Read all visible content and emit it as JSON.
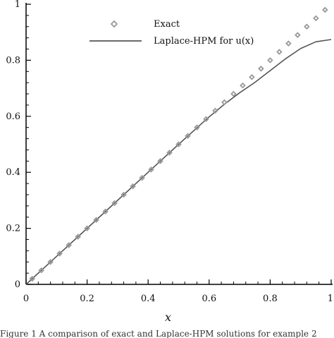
{
  "chart_data": {
    "type": "line",
    "title": "",
    "xlabel": "x",
    "ylabel": "",
    "xlim": [
      0,
      1
    ],
    "ylim": [
      0,
      1
    ],
    "xticks": [
      "0",
      "0.2",
      "0.4",
      "0.6",
      "0.8",
      "1"
    ],
    "yticks": [
      "0",
      "0.2",
      "0.4",
      "0.6",
      "0.8",
      "1"
    ],
    "grid": false,
    "legend_position": "top-right",
    "legend": [
      "Exact",
      "Laplace-HPM for u(x)"
    ],
    "series": [
      {
        "name": "Exact",
        "style": "markers",
        "marker": "diamond",
        "color": "#999999",
        "x": [
          0.02,
          0.05,
          0.08,
          0.11,
          0.14,
          0.17,
          0.2,
          0.23,
          0.26,
          0.29,
          0.32,
          0.35,
          0.38,
          0.41,
          0.44,
          0.47,
          0.5,
          0.53,
          0.56,
          0.59,
          0.62,
          0.65,
          0.68,
          0.71,
          0.74,
          0.77,
          0.8,
          0.83,
          0.86,
          0.89,
          0.92,
          0.95,
          0.98
        ],
        "values": [
          0.02,
          0.05,
          0.08,
          0.11,
          0.14,
          0.17,
          0.2,
          0.23,
          0.26,
          0.29,
          0.32,
          0.35,
          0.38,
          0.41,
          0.44,
          0.47,
          0.5,
          0.53,
          0.56,
          0.59,
          0.62,
          0.65,
          0.68,
          0.71,
          0.74,
          0.77,
          0.8,
          0.83,
          0.86,
          0.89,
          0.92,
          0.95,
          0.98
        ]
      },
      {
        "name": "Laplace-HPM for u(x)",
        "style": "line",
        "color": "#555555",
        "x": [
          0,
          0.1,
          0.2,
          0.3,
          0.4,
          0.5,
          0.6,
          0.65,
          0.7,
          0.75,
          0.8,
          0.85,
          0.9,
          0.95,
          1.0
        ],
        "values": [
          0,
          0.1,
          0.2,
          0.3,
          0.4,
          0.5,
          0.598,
          0.643,
          0.684,
          0.721,
          0.763,
          0.805,
          0.842,
          0.866,
          0.874
        ]
      }
    ],
    "caption": "Figure 1 A comparison of exact and Laplace-HPM solutions for example 2"
  }
}
